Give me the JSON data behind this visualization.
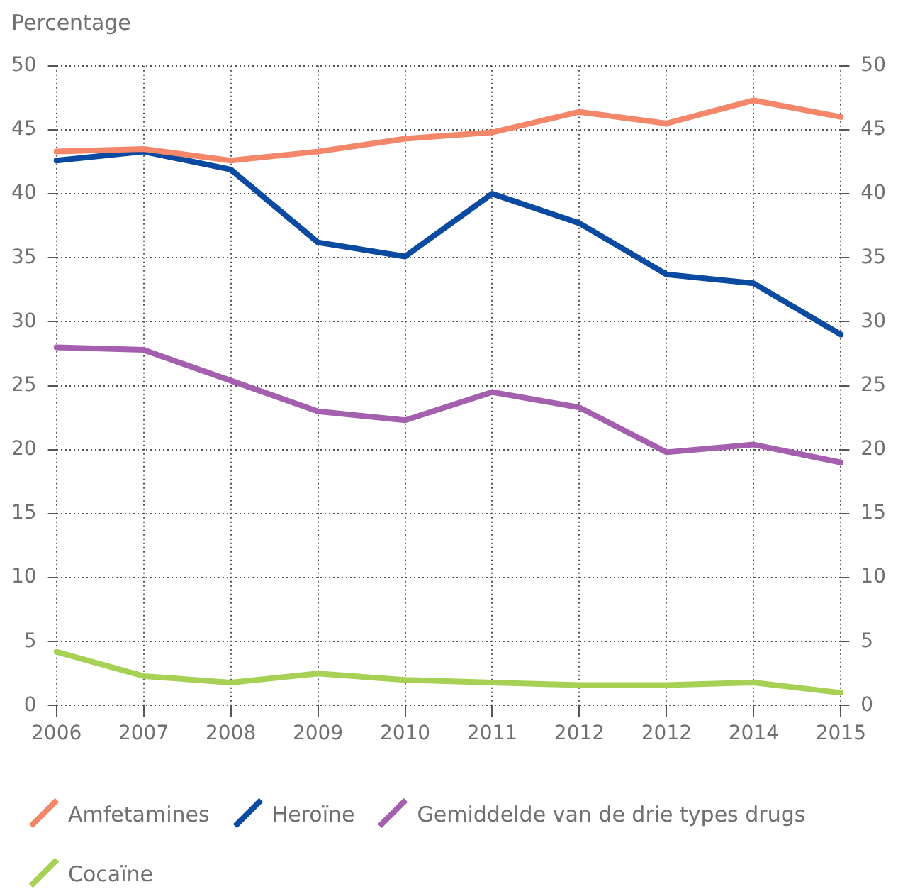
{
  "chart_data": {
    "type": "line",
    "ylabel": "Percentage",
    "categories": [
      "2006",
      "2007",
      "2008",
      "2009",
      "2010",
      "2011",
      "2012",
      "2012",
      "2014",
      "2015"
    ],
    "series": [
      {
        "name": "Amfetamines",
        "color": "#f4876a",
        "values": [
          43.3,
          43.5,
          42.6,
          43.3,
          44.3,
          44.8,
          46.4,
          45.5,
          47.3,
          46.0
        ]
      },
      {
        "name": "Heroïne",
        "color": "#0a4aa0",
        "values": [
          42.6,
          43.3,
          41.9,
          36.2,
          35.1,
          40.0,
          37.7,
          33.7,
          33.0,
          29.0
        ]
      },
      {
        "name": "Gemiddelde van de drie types drugs",
        "color": "#a45fae",
        "values": [
          28.0,
          27.8,
          25.4,
          23.0,
          22.3,
          24.5,
          23.3,
          19.8,
          20.4,
          19.0
        ]
      },
      {
        "name": "Cocaïne",
        "color": "#a6d155",
        "values": [
          4.2,
          2.3,
          1.8,
          2.5,
          2.0,
          1.8,
          1.6,
          1.6,
          1.8,
          1.0
        ]
      }
    ],
    "ylim": [
      0,
      50
    ],
    "yticks": [
      0,
      5,
      10,
      15,
      20,
      25,
      30,
      35,
      40,
      45,
      50
    ],
    "y2lim": [
      0,
      50
    ],
    "y2ticks": [
      0,
      5,
      10,
      15,
      20,
      25,
      30,
      35,
      40,
      45,
      50
    ],
    "grid": true,
    "legend": "bottom",
    "marker": "none",
    "line_style": "solid"
  }
}
